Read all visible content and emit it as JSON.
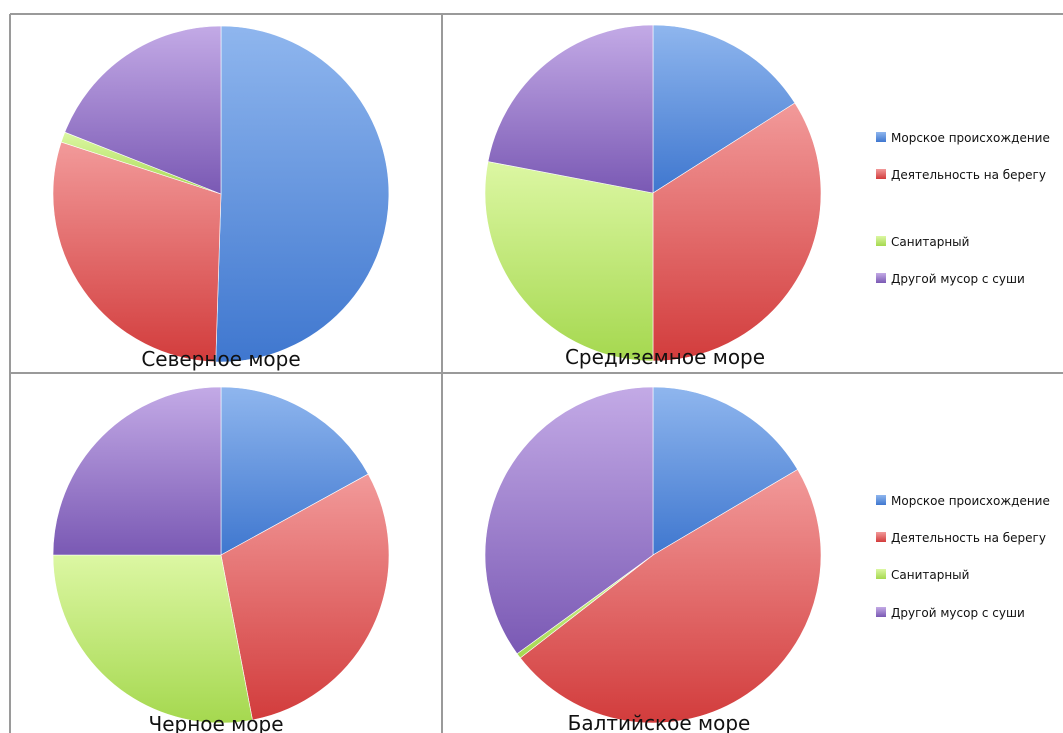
{
  "legend": [
    "Морское происхождение",
    "Деятельность на берегу",
    "Санитарный",
    "Другой мусор с суши"
  ],
  "colors": {
    "marine": "#5b8fd8",
    "shore": "#e25c5c",
    "sanitary": "#b8e36a",
    "land": "#8e6cc4"
  },
  "chart_data": [
    {
      "type": "pie",
      "title": "Северное море",
      "categories": [
        "Морское происхождение",
        "Деятельность на берегу",
        "Санитарный",
        "Другой мусор с суши"
      ],
      "values": [
        50.5,
        29.5,
        1,
        19
      ]
    },
    {
      "type": "pie",
      "title": "Средиземное море",
      "categories": [
        "Морское происхождение",
        "Деятельность на берегу",
        "Санитарный",
        "Другой мусор с суши"
      ],
      "values": [
        16,
        34,
        28,
        22
      ]
    },
    {
      "type": "pie",
      "title": "Черное море",
      "categories": [
        "Морское происхождение",
        "Деятельность на берегу",
        "Санитарный",
        "Другой мусор с суши"
      ],
      "values": [
        17,
        30,
        28,
        25
      ]
    },
    {
      "type": "pie",
      "title": "Балтийское море",
      "categories": [
        "Морское происхождение",
        "Деятельность на берегу",
        "Санитарный",
        "Другой мусор с суши"
      ],
      "values": [
        16.5,
        48,
        0.5,
        35
      ]
    }
  ]
}
